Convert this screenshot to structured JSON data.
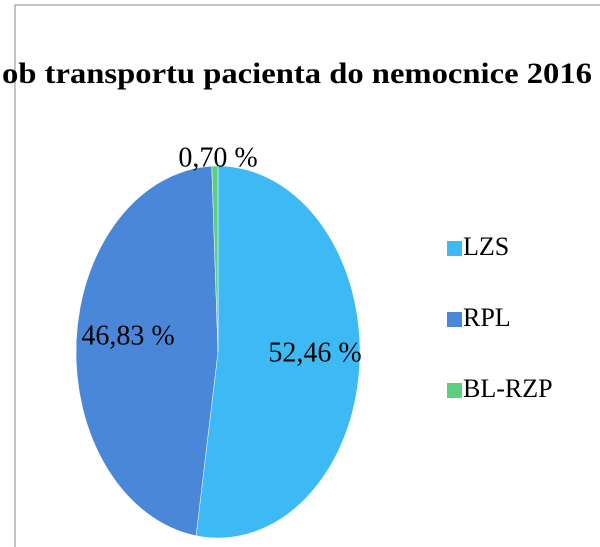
{
  "chart_data": {
    "type": "pie",
    "title": "ob transportu pacienta do nemocnice 2016",
    "categories": [
      "LZS",
      "RPL",
      "BL-RZP"
    ],
    "values": [
      52.46,
      46.83,
      0.7
    ],
    "value_labels": [
      "52,46 %",
      "46,83 %",
      "0,70 %"
    ],
    "colors": [
      "#3dbaf4",
      "#4a87d9",
      "#5ccf7f"
    ],
    "legend": "right"
  }
}
